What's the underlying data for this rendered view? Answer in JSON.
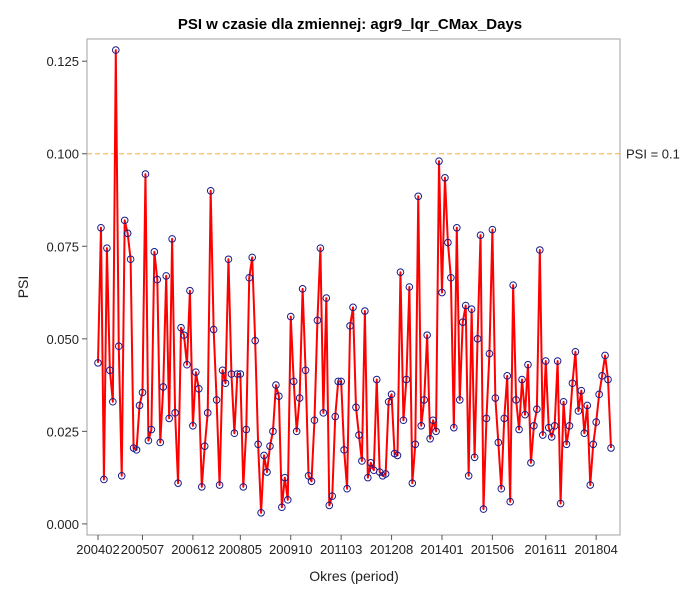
{
  "chart_data": {
    "type": "line",
    "title": "PSI w czasie dla zmiennej: agr9_lqr_CMax_Days",
    "xlabel": "Okres (period)",
    "ylabel": "PSI",
    "ylim": [
      -0.003,
      0.131
    ],
    "yticks": [
      0.0,
      0.025,
      0.05,
      0.075,
      0.1,
      0.125
    ],
    "ytick_labels": [
      "0.000",
      "0.025",
      "0.050",
      "0.075",
      "0.100",
      "0.125"
    ],
    "xtick_labels": [
      "200402",
      "200507",
      "200612",
      "200805",
      "200910",
      "201103",
      "201208",
      "201401",
      "201506",
      "201611",
      "201804"
    ],
    "xtick_indices": [
      0,
      15,
      32,
      48,
      65,
      82,
      99,
      116,
      133,
      151,
      168
    ],
    "grid": false,
    "reference_line": {
      "value": 0.1,
      "label": "PSI = 0.1",
      "color": "#f0b040"
    },
    "colors": {
      "line": "#ff0000",
      "marker": "#1a1a8c",
      "frame": "#a0a0a0"
    },
    "series": [
      {
        "values": [
          0.0435,
          0.08,
          0.012,
          0.0745,
          0.0415,
          0.033,
          0.128,
          0.048,
          0.013,
          0.082,
          0.0785,
          0.0715,
          0.0205,
          0.02,
          0.032,
          0.0355,
          0.0945,
          0.0225,
          0.0255,
          0.0735,
          0.066,
          0.022,
          0.037,
          0.067,
          0.0285,
          0.077,
          0.03,
          0.011,
          0.053,
          0.051,
          0.043,
          0.063,
          0.0265,
          0.041,
          0.0365,
          0.01,
          0.021,
          0.03,
          0.09,
          0.0525,
          0.0335,
          0.0105,
          0.0415,
          0.038,
          0.0715,
          0.0405,
          0.0245,
          0.0405,
          0.0405,
          0.01,
          0.0255,
          0.0665,
          0.072,
          0.0495,
          0.0215,
          0.003,
          0.0185,
          0.014,
          0.021,
          0.025,
          0.0375,
          0.0345,
          0.0045,
          0.0125,
          0.0065,
          0.056,
          0.0385,
          0.025,
          0.034,
          0.0635,
          0.0415,
          0.013,
          0.0115,
          0.028,
          0.055,
          0.0745,
          0.03,
          0.061,
          0.005,
          0.0075,
          0.029,
          0.0385,
          0.0385,
          0.02,
          0.0095,
          0.0535,
          0.0585,
          0.0315,
          0.024,
          0.017,
          0.0575,
          0.0125,
          0.0165,
          0.0145,
          0.039,
          0.014,
          0.013,
          0.0135,
          0.033,
          0.035,
          0.019,
          0.0185,
          0.068,
          0.028,
          0.039,
          0.064,
          0.011,
          0.0215,
          0.0885,
          0.0265,
          0.0335,
          0.051,
          0.023,
          0.028,
          0.025,
          0.098,
          0.0625,
          0.0935,
          0.076,
          0.0665,
          0.026,
          0.08,
          0.0335,
          0.0545,
          0.059,
          0.013,
          0.058,
          0.018,
          0.05,
          0.078,
          0.004,
          0.0285,
          0.046,
          0.0795,
          0.034,
          0.022,
          0.0095,
          0.0285,
          0.04,
          0.006,
          0.0645,
          0.0335,
          0.0255,
          0.039,
          0.0295,
          0.043,
          0.0165,
          0.0265,
          0.031,
          0.074,
          0.024,
          0.044,
          0.026,
          0.0235,
          0.0265,
          0.044,
          0.0055,
          0.033,
          0.0215,
          0.0265,
          0.038,
          0.0465,
          0.0305,
          0.036,
          0.0245,
          0.032,
          0.0105,
          0.0215,
          0.0275,
          0.035,
          0.04,
          0.0455,
          0.039,
          0.0205
        ]
      }
    ]
  }
}
